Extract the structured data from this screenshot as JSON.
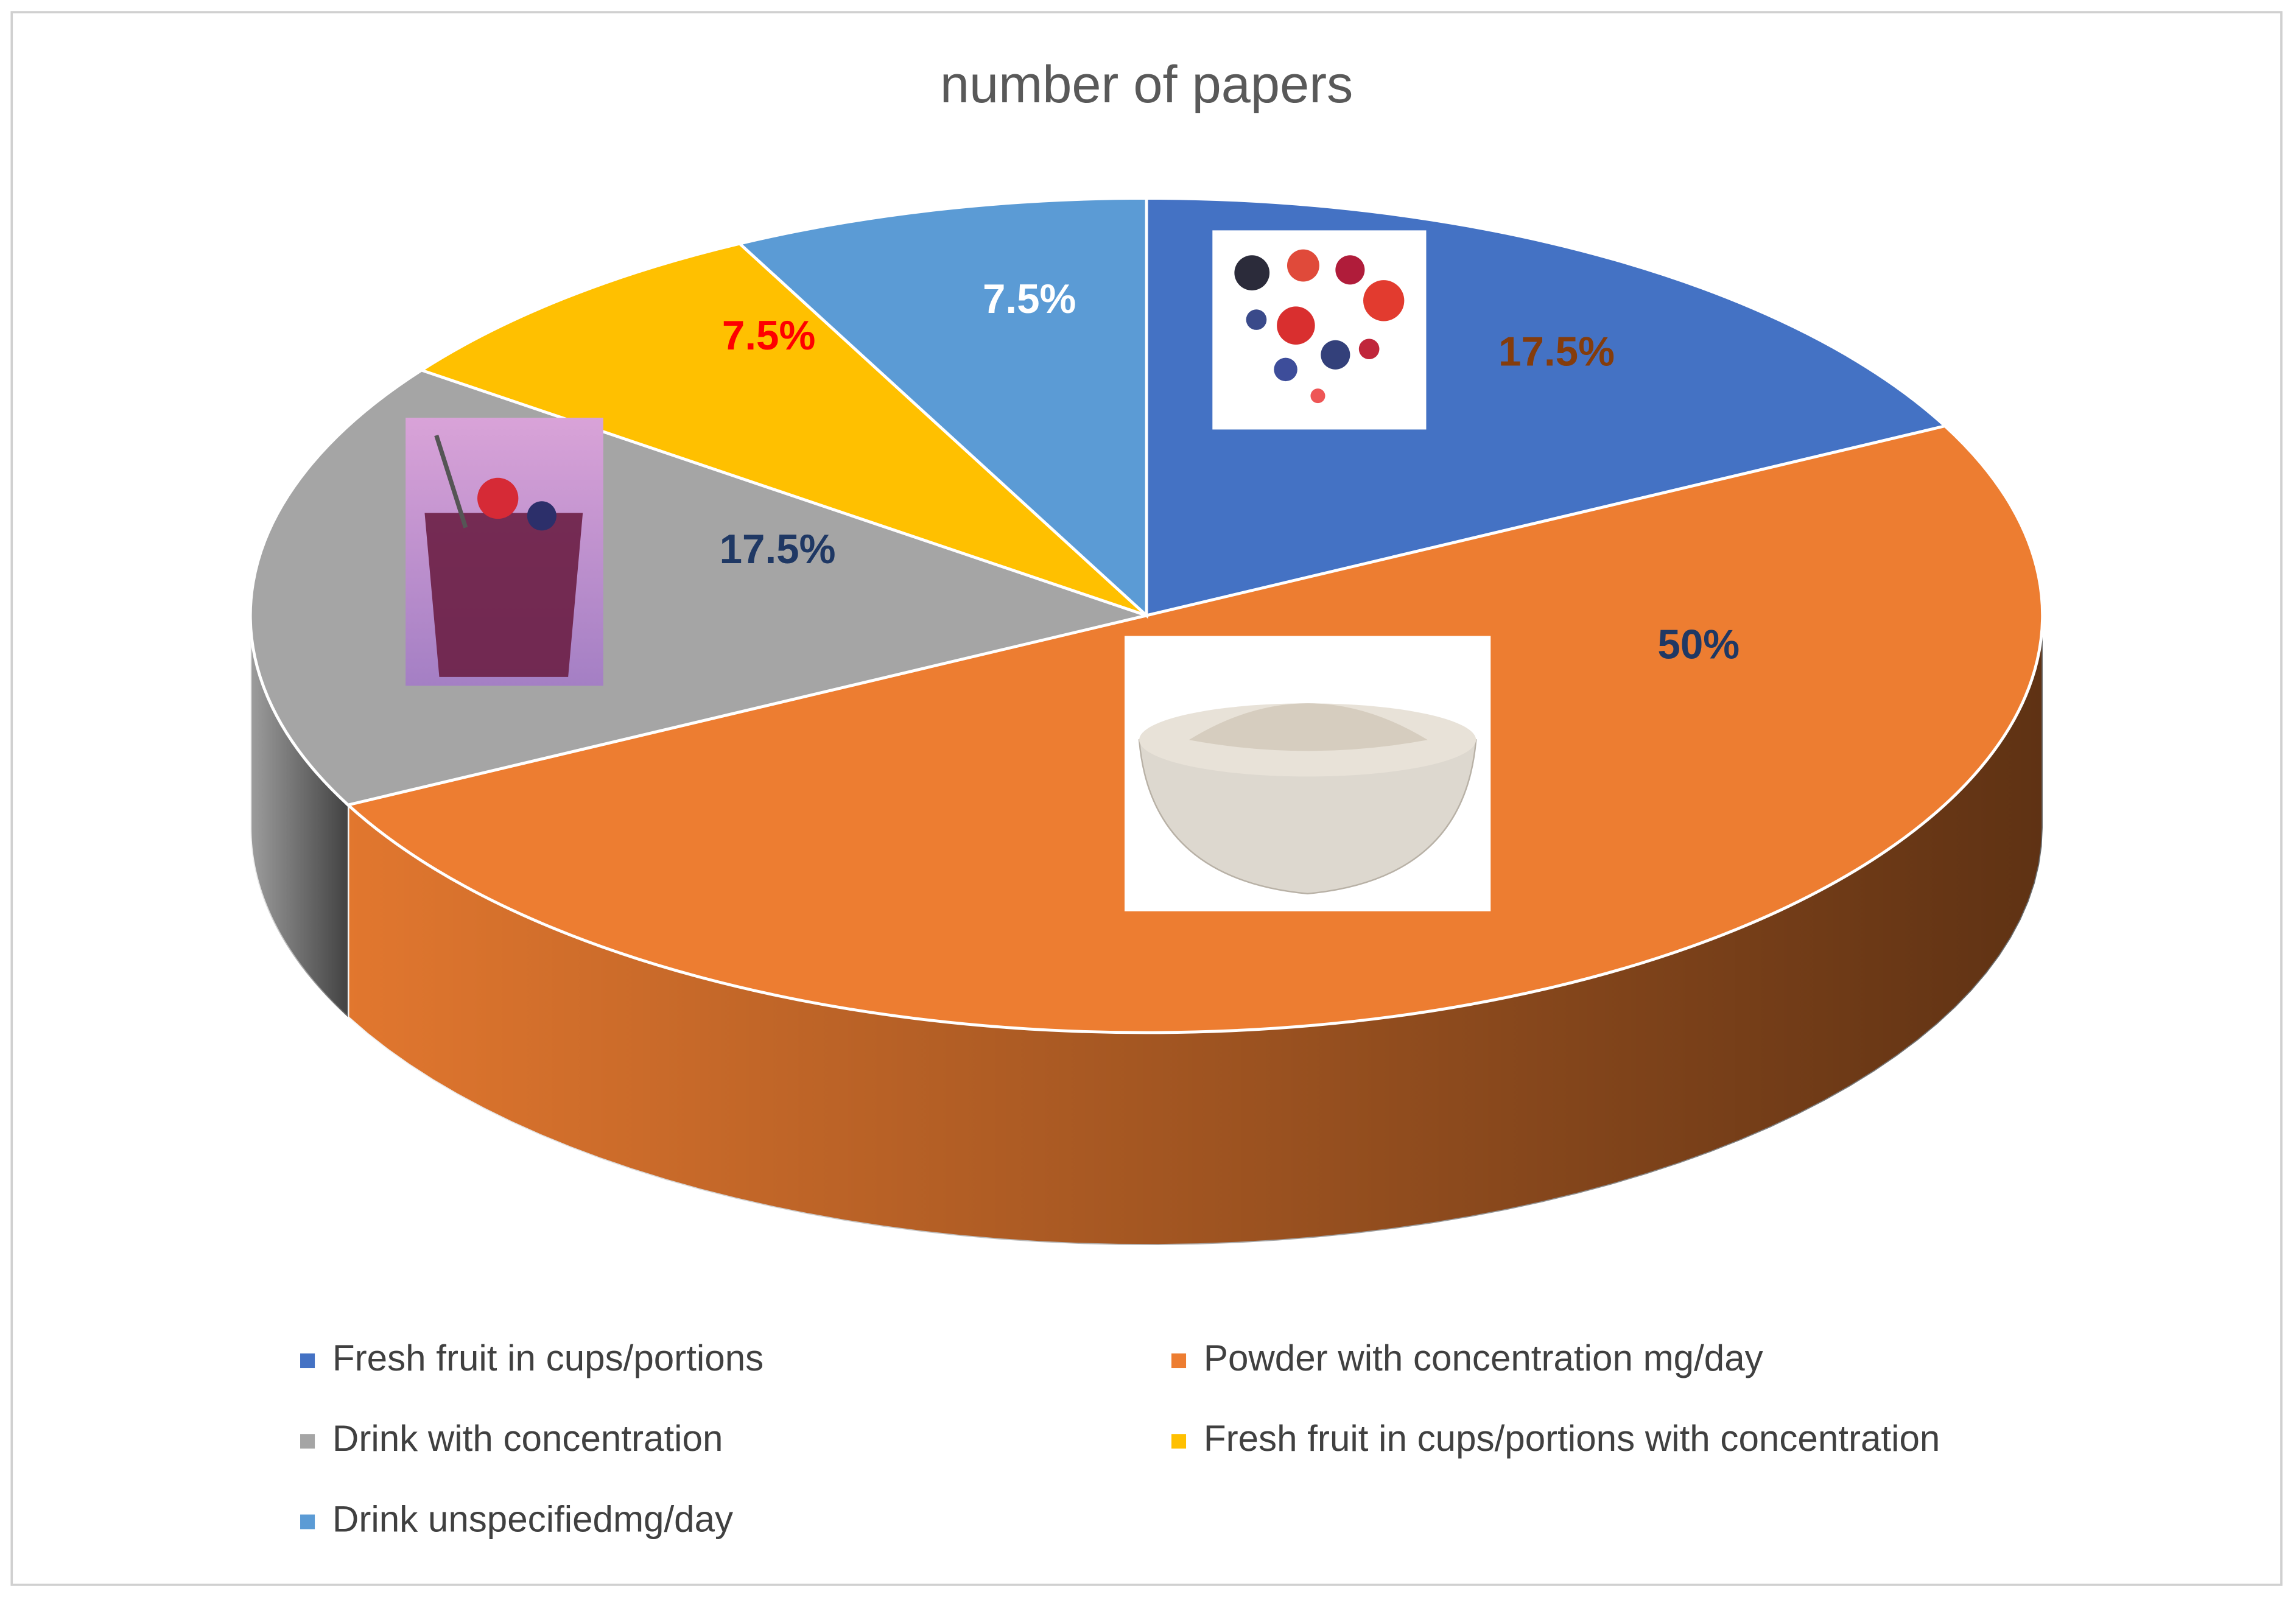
{
  "chart_data": {
    "type": "pie",
    "title": "number of papers",
    "categories": [
      "Fresh fruit in cups/portions",
      "Powder with concentration mg/day",
      "Drink with concentration",
      "Fresh fruit in cups/portions with concentration",
      "Drink  unspecifiedmg/day"
    ],
    "values": [
      17.5,
      50,
      17.5,
      7.5,
      7.5
    ],
    "value_labels": [
      "17.5%",
      "50%",
      "17.5%",
      "7.5%",
      "7.5%"
    ],
    "colors": [
      "#4472c4",
      "#ed7d31",
      "#a5a5a5",
      "#ffc000",
      "#5b9bd5"
    ],
    "label_colors": [
      "#843c0c",
      "#1f3864",
      "#1f3864",
      "#ff0000",
      "#ffffff"
    ],
    "legend": "bottom"
  }
}
